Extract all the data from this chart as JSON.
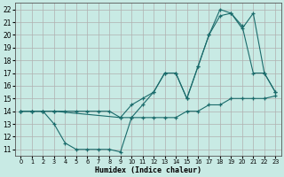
{
  "xlabel": "Humidex (Indice chaleur)",
  "background_color": "#c8eae4",
  "grid_color": "#b0b0b0",
  "line_color": "#1a6b6b",
  "xlim": [
    -0.5,
    23.5
  ],
  "ylim": [
    10.5,
    22.5
  ],
  "xticks": [
    0,
    1,
    2,
    3,
    4,
    5,
    6,
    7,
    8,
    9,
    10,
    11,
    12,
    13,
    14,
    15,
    16,
    17,
    18,
    19,
    20,
    21,
    22,
    23
  ],
  "yticks": [
    11,
    12,
    13,
    14,
    15,
    16,
    17,
    18,
    19,
    20,
    21,
    22
  ],
  "curve1_x": [
    0,
    1,
    2,
    3,
    4,
    5,
    6,
    7,
    8,
    9,
    10,
    11,
    12,
    13,
    14,
    15,
    16,
    17,
    18,
    19,
    20,
    21,
    22,
    23
  ],
  "curve1_y": [
    14,
    14,
    14,
    14,
    14,
    14,
    14,
    14,
    14,
    13.5,
    13.5,
    13.5,
    13.5,
    13.5,
    13.5,
    14,
    14,
    14.5,
    14.5,
    15,
    15,
    15,
    15,
    15.2
  ],
  "curve2_x": [
    0,
    1,
    2,
    3,
    4,
    5,
    6,
    7,
    8,
    9,
    10,
    11,
    12,
    13,
    14,
    15,
    16,
    17,
    18,
    19,
    20,
    21,
    22,
    23
  ],
  "curve2_y": [
    14,
    14,
    14,
    13,
    11.5,
    11,
    11,
    11,
    11,
    10.8,
    13.5,
    14.5,
    15.5,
    17,
    17,
    15,
    17.5,
    20,
    22,
    21.7,
    20.5,
    21.7,
    17,
    15.5
  ],
  "curve3_x": [
    0,
    1,
    2,
    3,
    9,
    10,
    11,
    12,
    13,
    14,
    15,
    16,
    17,
    18,
    19,
    20,
    21,
    22,
    23
  ],
  "curve3_y": [
    14,
    14,
    14,
    14,
    13.5,
    14.5,
    15,
    15.5,
    17,
    17,
    15,
    17.5,
    20,
    21.5,
    21.7,
    20.7,
    17,
    17,
    15.5
  ]
}
